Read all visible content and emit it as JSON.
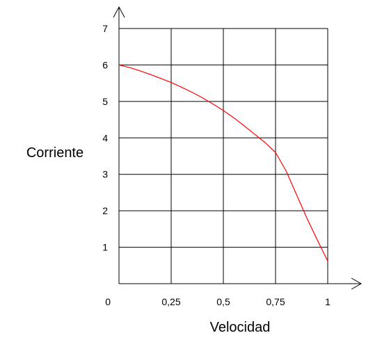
{
  "chart_data": {
    "type": "line",
    "title": "",
    "xlabel": "Velocidad",
    "ylabel": "Corriente",
    "x_ticks": [
      "0",
      "0,25",
      "0,5",
      "0,75",
      "1"
    ],
    "y_ticks": [
      "1",
      "2",
      "3",
      "4",
      "5",
      "6",
      "7"
    ],
    "xlim": [
      0,
      1
    ],
    "ylim": [
      0,
      7
    ],
    "grid": true,
    "series": [
      {
        "color": "#ff0000",
        "x": [
          0,
          0.05,
          0.1,
          0.15,
          0.2,
          0.25,
          0.3,
          0.35,
          0.4,
          0.45,
          0.5,
          0.55,
          0.6,
          0.65,
          0.7,
          0.75,
          0.8,
          0.85,
          0.9,
          0.95,
          1.0
        ],
        "y": [
          6.0,
          5.93,
          5.84,
          5.74,
          5.63,
          5.52,
          5.39,
          5.25,
          5.1,
          4.93,
          4.75,
          4.55,
          4.33,
          4.1,
          3.87,
          3.6,
          3.1,
          2.45,
          1.8,
          1.2,
          0.62
        ]
      }
    ]
  }
}
